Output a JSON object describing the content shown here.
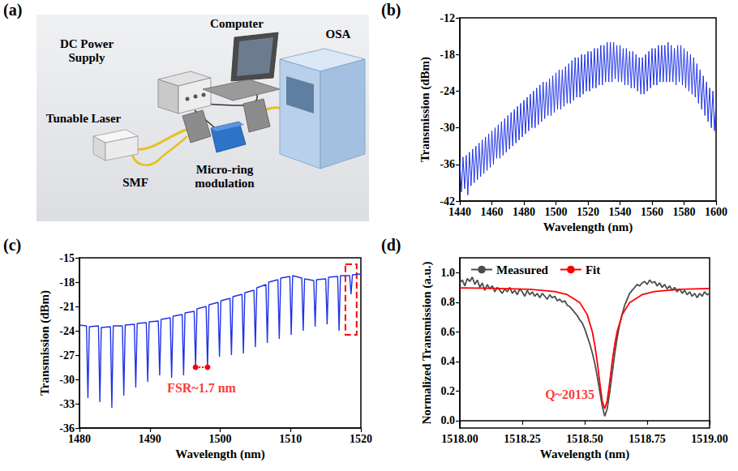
{
  "diagram": {
    "panel": "(a)",
    "components": [
      "Computer",
      "DC Power Supply",
      "OSA",
      "Tunable Laser",
      "SMF",
      "Micro-ring modulation"
    ]
  },
  "chart_data": [
    {
      "panel": "(b)",
      "type": "line",
      "x_label": "Wavelength (nm)",
      "y_label": "Transmission (dBm)",
      "xlim": [
        1440,
        1600
      ],
      "xticks": [
        1440,
        1460,
        1480,
        1500,
        1520,
        1540,
        1560,
        1580,
        1600
      ],
      "ylim": [
        -42,
        -12
      ],
      "yticks": [
        -42,
        -36,
        -30,
        -24,
        -18,
        -12
      ],
      "grid": false,
      "color": "#1f33e6",
      "x": [
        1440,
        1441,
        1442,
        1443,
        1444,
        1445,
        1446,
        1447,
        1448,
        1449,
        1450,
        1451,
        1452,
        1453,
        1454,
        1455,
        1456,
        1457,
        1458,
        1459,
        1460,
        1461,
        1462,
        1463,
        1464,
        1465,
        1466,
        1467,
        1468,
        1469,
        1470,
        1471,
        1472,
        1473,
        1474,
        1475,
        1476,
        1477,
        1478,
        1479,
        1480,
        1481,
        1482,
        1483,
        1484,
        1485,
        1486,
        1487,
        1488,
        1489,
        1490,
        1491,
        1492,
        1493,
        1494,
        1495,
        1496,
        1497,
        1498,
        1499,
        1500,
        1501,
        1502,
        1503,
        1504,
        1505,
        1506,
        1507,
        1508,
        1509,
        1510,
        1511,
        1512,
        1513,
        1514,
        1515,
        1516,
        1517,
        1518,
        1519,
        1520,
        1521,
        1522,
        1523,
        1524,
        1525,
        1526,
        1527,
        1528,
        1529,
        1530,
        1531,
        1532,
        1533,
        1534,
        1535,
        1536,
        1537,
        1538,
        1539,
        1540,
        1541,
        1542,
        1543,
        1544,
        1545,
        1546,
        1547,
        1548,
        1549,
        1550,
        1551,
        1552,
        1553,
        1554,
        1555,
        1556,
        1557,
        1558,
        1559,
        1560,
        1561,
        1562,
        1563,
        1564,
        1565,
        1566,
        1567,
        1568,
        1569,
        1570,
        1571,
        1572,
        1573,
        1574,
        1575,
        1576,
        1577,
        1578,
        1579,
        1580,
        1581,
        1582,
        1583,
        1584,
        1585,
        1586,
        1587,
        1588,
        1589,
        1590,
        1591,
        1592,
        1593,
        1594,
        1595,
        1596,
        1597,
        1598,
        1599,
        1600
      ],
      "values": [
        -35.5,
        -40.5,
        -34.8,
        -40,
        -34.5,
        -41,
        -34,
        -39.5,
        -33.5,
        -39,
        -33,
        -38.5,
        -32.5,
        -38,
        -32,
        -37.5,
        -31.5,
        -37,
        -31,
        -36.5,
        -30.5,
        -36,
        -30,
        -35,
        -29.5,
        -35,
        -29,
        -34.5,
        -28.5,
        -34,
        -28,
        -33.5,
        -27.5,
        -33,
        -27,
        -32.5,
        -26.5,
        -32,
        -26,
        -31.5,
        -25.5,
        -31,
        -25,
        -30.5,
        -24.5,
        -30,
        -24,
        -30,
        -23.5,
        -29.5,
        -23,
        -29,
        -22.5,
        -28.5,
        -22.5,
        -28,
        -22,
        -28,
        -21.5,
        -27.5,
        -21,
        -27,
        -20.5,
        -27,
        -20.5,
        -26.5,
        -20,
        -26,
        -19.5,
        -26,
        -19,
        -25.5,
        -18.5,
        -25,
        -18.5,
        -25,
        -18,
        -24.5,
        -18,
        -24,
        -17.5,
        -24,
        -17.5,
        -23.5,
        -17,
        -23.5,
        -17,
        -23,
        -16.5,
        -23,
        -16.5,
        -22.5,
        -16,
        -22.5,
        -16,
        -22.5,
        -16,
        -22,
        -16.5,
        -22.5,
        -16.5,
        -22.5,
        -17,
        -23,
        -17,
        -23,
        -17.5,
        -23.5,
        -17.5,
        -23.5,
        -18,
        -24,
        -18.5,
        -24.5,
        -18.5,
        -24.5,
        -18,
        -24,
        -17.5,
        -23.5,
        -17,
        -23,
        -17,
        -23,
        -16.5,
        -22.5,
        -16.5,
        -22.5,
        -16.5,
        -22.5,
        -16,
        -22.5,
        -16.5,
        -22.5,
        -17,
        -23,
        -16.5,
        -22.5,
        -16.5,
        -23,
        -17,
        -23.5,
        -17.5,
        -24,
        -18,
        -24.5,
        -18.5,
        -25,
        -19.5,
        -26,
        -20.5,
        -27,
        -21.5,
        -28,
        -22.5,
        -29,
        -23.5,
        -30,
        -24,
        -30.5,
        -25.5
      ]
    },
    {
      "panel": "(c)",
      "type": "line",
      "x_label": "Wavelength (nm)",
      "y_label": "Transmission (dBm)",
      "xlim": [
        1480,
        1520
      ],
      "xticks": [
        1480,
        1490,
        1500,
        1510,
        1520
      ],
      "ylim": [
        -36,
        -15
      ],
      "yticks": [
        -36,
        -33,
        -30,
        -27,
        -24,
        -21,
        -18,
        -15
      ],
      "grid": false,
      "color": "#1f33e6",
      "x": [
        1480,
        1481.0,
        1481.2,
        1481.4,
        1482.7,
        1482.9,
        1483.1,
        1484.4,
        1484.6,
        1484.8,
        1486.1,
        1486.3,
        1486.5,
        1487.8,
        1488.0,
        1488.2,
        1489.5,
        1489.7,
        1489.9,
        1491.2,
        1491.4,
        1491.6,
        1492.9,
        1493.1,
        1493.3,
        1494.6,
        1494.8,
        1495.0,
        1496.3,
        1496.5,
        1496.7,
        1498.0,
        1498.2,
        1498.4,
        1499.7,
        1499.9,
        1500.1,
        1501.4,
        1501.6,
        1501.8,
        1503.1,
        1503.3,
        1503.5,
        1504.8,
        1505.0,
        1505.2,
        1506.5,
        1506.7,
        1506.9,
        1508.2,
        1508.4,
        1508.6,
        1509.9,
        1510.1,
        1510.3,
        1511.6,
        1511.8,
        1512.0,
        1513.3,
        1513.5,
        1513.7,
        1515.0,
        1515.2,
        1515.4,
        1516.7,
        1516.9,
        1517.1,
        1518.4,
        1518.6,
        1518.8,
        1520
      ],
      "values": [
        -23.3,
        -23.4,
        -32.3,
        -23.5,
        -23.4,
        -32.8,
        -23.6,
        -23.5,
        -33.5,
        -23.4,
        -23.4,
        -32,
        -23.3,
        -23.2,
        -31,
        -23.1,
        -23,
        -30.3,
        -22.9,
        -22.8,
        -29.5,
        -22.6,
        -22.4,
        -29.8,
        -22.2,
        -22,
        -29.5,
        -21.8,
        -21.6,
        -28.5,
        -21.3,
        -21,
        -28.5,
        -20.8,
        -20.5,
        -27.2,
        -20.3,
        -20,
        -27,
        -19.8,
        -19.5,
        -26.8,
        -19.3,
        -19,
        -26,
        -18.7,
        -18.3,
        -25.5,
        -18,
        -17.7,
        -25,
        -17.5,
        -17.3,
        -24.5,
        -17.2,
        -17.5,
        -24,
        -17.6,
        -17.8,
        -23.5,
        -17.7,
        -17.6,
        -23.2,
        -17.4,
        -17.3,
        -24,
        -17.2,
        -17.2,
        -19.5,
        -17.1,
        -17
      ],
      "annotations": [
        {
          "text": "FSR~1.7 nm",
          "x": 1497.35,
          "y": -31,
          "from": 1496.5,
          "to": 1498.2,
          "at": -28.5
        }
      ],
      "highlight": {
        "x": [
          1517.8,
          1519.4
        ],
        "y": [
          -24.5,
          -15.8
        ]
      }
    },
    {
      "panel": "(d)",
      "type": "line",
      "x_label": "Wavelength (nm)",
      "y_label": "Normalized Transmission (a.u.)",
      "xlim": [
        1518,
        1519
      ],
      "xticks": [
        {
          "value": 1518,
          "label": "1518.00"
        },
        1518.25,
        {
          "value": 1518.5,
          "label": "1518.50"
        },
        1518.75,
        {
          "value": 1519,
          "label": "1519.00"
        }
      ],
      "ylim": [
        -0.05,
        1.1
      ],
      "yticks": [
        {
          "value": 0,
          "label": "0.0"
        },
        0.2,
        0.4,
        0.6,
        0.8,
        {
          "value": 1,
          "label": "1.0"
        }
      ],
      "grid": false,
      "legend": "upper left",
      "series": [
        {
          "name": "Measured",
          "color": "#4d4d4d",
          "x": [
            1518,
            1518.01,
            1518.02,
            1518.03,
            1518.04,
            1518.05,
            1518.06,
            1518.07,
            1518.08,
            1518.09,
            1518.1,
            1518.11,
            1518.12,
            1518.13,
            1518.14,
            1518.15,
            1518.16,
            1518.17,
            1518.18,
            1518.19,
            1518.2,
            1518.21,
            1518.22,
            1518.23,
            1518.24,
            1518.25,
            1518.26,
            1518.27,
            1518.28,
            1518.29,
            1518.3,
            1518.31,
            1518.32,
            1518.33,
            1518.34,
            1518.35,
            1518.36,
            1518.37,
            1518.38,
            1518.39,
            1518.4,
            1518.41,
            1518.42,
            1518.43,
            1518.44,
            1518.45,
            1518.46,
            1518.47,
            1518.48,
            1518.49,
            1518.5,
            1518.51,
            1518.52,
            1518.53,
            1518.54,
            1518.55,
            1518.56,
            1518.57,
            1518.58,
            1518.59,
            1518.6,
            1518.61,
            1518.62,
            1518.63,
            1518.64,
            1518.65,
            1518.66,
            1518.67,
            1518.68,
            1518.69,
            1518.7,
            1518.71,
            1518.72,
            1518.73,
            1518.74,
            1518.75,
            1518.76,
            1518.77,
            1518.78,
            1518.79,
            1518.8,
            1518.81,
            1518.82,
            1518.83,
            1518.84,
            1518.85,
            1518.86,
            1518.87,
            1518.88,
            1518.89,
            1518.9,
            1518.91,
            1518.92,
            1518.93,
            1518.94,
            1518.95,
            1518.96,
            1518.97,
            1518.98,
            1518.99,
            1519
          ],
          "values": [
            0.93,
            0.95,
            0.91,
            0.96,
            0.94,
            0.97,
            0.92,
            0.95,
            0.9,
            0.93,
            0.88,
            0.92,
            0.89,
            0.91,
            0.87,
            0.9,
            0.88,
            0.86,
            0.89,
            0.87,
            0.9,
            0.86,
            0.88,
            0.85,
            0.89,
            0.87,
            0.84,
            0.88,
            0.85,
            0.87,
            0.84,
            0.86,
            0.83,
            0.86,
            0.84,
            0.82,
            0.85,
            0.83,
            0.84,
            0.81,
            0.82,
            0.8,
            0.81,
            0.78,
            0.77,
            0.75,
            0.73,
            0.71,
            0.68,
            0.66,
            0.62,
            0.57,
            0.52,
            0.46,
            0.39,
            0.3,
            0.2,
            0.1,
            0.03,
            0.08,
            0.19,
            0.32,
            0.45,
            0.56,
            0.65,
            0.72,
            0.78,
            0.82,
            0.86,
            0.88,
            0.9,
            0.92,
            0.91,
            0.93,
            0.94,
            0.92,
            0.95,
            0.93,
            0.94,
            0.91,
            0.93,
            0.9,
            0.92,
            0.89,
            0.91,
            0.88,
            0.9,
            0.87,
            0.89,
            0.86,
            0.88,
            0.85,
            0.87,
            0.84,
            0.86,
            0.83,
            0.86,
            0.84,
            0.87,
            0.85,
            0.86
          ]
        },
        {
          "name": "Fit",
          "color": "#ff0000",
          "x": [
            1518,
            1518.13,
            1518.28,
            1518.38,
            1518.43,
            1518.48,
            1518.51,
            1518.53,
            1518.54,
            1518.55,
            1518.56,
            1518.57,
            1518.58,
            1518.59,
            1518.6,
            1518.61,
            1518.62,
            1518.63,
            1518.65,
            1518.68,
            1518.73,
            1518.78,
            1518.88,
            1519
          ],
          "values": [
            0.897,
            0.894,
            0.887,
            0.872,
            0.851,
            0.798,
            0.716,
            0.603,
            0.514,
            0.398,
            0.26,
            0.134,
            0.08,
            0.134,
            0.26,
            0.398,
            0.514,
            0.603,
            0.716,
            0.798,
            0.851,
            0.872,
            0.887,
            0.893
          ]
        }
      ],
      "annotations": [
        {
          "text": "Q~20135",
          "x": 1518.44,
          "y": 0.18
        }
      ]
    }
  ]
}
